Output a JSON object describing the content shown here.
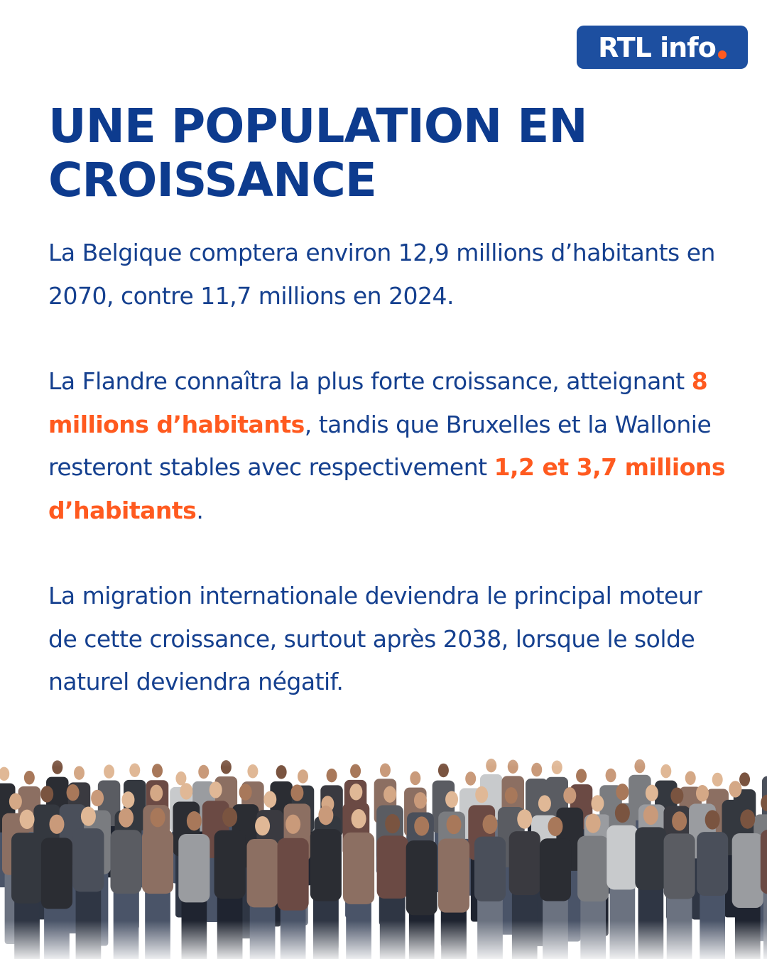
{
  "logo": {
    "text": "RTL info"
  },
  "title": "UNE POPULATION EN CROISSANCE",
  "paragraphs": [
    {
      "runs": [
        "La Belgique comptera environ 12,9 millions d’habitants en 2070, contre 11,7 millions en 2024."
      ]
    },
    {
      "runs": [
        "La Flandre connaîtra la plus forte croissance, atteignant ",
        "8 millions d’habitants",
        ", tandis que Bruxelles et la Wallonie resteront stables avec respectivement ",
        "1,2 et 3,7 millions d’habitants",
        "."
      ]
    },
    {
      "runs": [
        "La migration internationale deviendra le principal moteur de cette croissance, surtout après 2038, lorsque le solde naturel deviendra négatif."
      ]
    }
  ]
}
